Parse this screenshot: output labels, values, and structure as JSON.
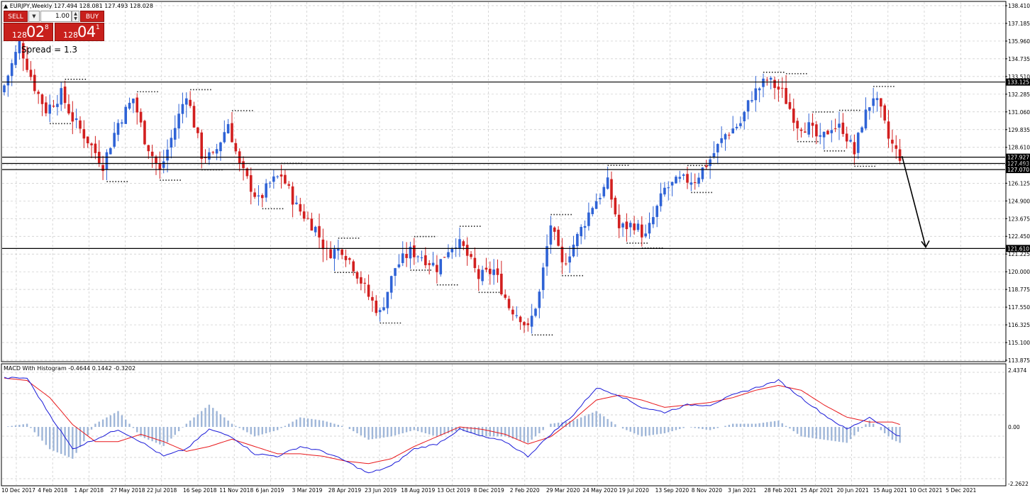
{
  "chart_header": {
    "symbol_info": "EURJPY,Weekly  127.494 128.081 127.493 128.028"
  },
  "trade_panel": {
    "sell_label": "SELL",
    "buy_label": "BUY",
    "lot": "1.00",
    "sell_price_small": "128",
    "sell_price_big": "02",
    "sell_price_sup": "8",
    "buy_price_small": "128",
    "buy_price_big": "04",
    "buy_price_sup": "1",
    "spread_text": "Spread = 1.3"
  },
  "indicator_header": {
    "label": "MACD With Histogram -0.4644 0.1442 -0.3202"
  },
  "colors": {
    "bull": "#2f63d6",
    "bear": "#d21f1f",
    "macd_line": "#1a1ad8",
    "signal_line": "#e8181b",
    "histogram": "#9fb6d8",
    "grid": "#c8c8c8"
  },
  "chart_data": [
    {
      "type": "candlestick",
      "symbol": "EURJPY",
      "timeframe": "Weekly",
      "ylim": [
        113.875,
        138.41
      ],
      "y_tick_labels": [
        "138.410",
        "137.185",
        "135.960",
        "134.735",
        "133.510",
        "132.285",
        "131.060",
        "129.835",
        "128.610",
        "127.385",
        "126.125",
        "124.900",
        "123.675",
        "122.450",
        "121.225",
        "120.000",
        "118.775",
        "117.550",
        "116.325",
        "115.100",
        "113.875"
      ],
      "x_tick_labels": [
        "10 Dec 2017",
        "4 Feb 2018",
        "1 Apr 2018",
        "27 May 2018",
        "22 Jul 2018",
        "16 Sep 2018",
        "11 Nov 2018",
        "6 Jan 2019",
        "3 Mar 2019",
        "28 Apr 2019",
        "23 Jun 2019",
        "18 Aug 2019",
        "13 Oct 2019",
        "8 Dec 2019",
        "2 Feb 2020",
        "29 Mar 2020",
        "24 May 2020",
        "19 Jul 2020",
        "13 Sep 2020",
        "8 Nov 2020",
        "3 Jan 2021",
        "28 Feb 2021",
        "25 Apr 2021",
        "20 Jun 2021",
        "15 Aug 2021",
        "10 Oct 2021",
        "5 Dec 2021"
      ],
      "close_path": [
        [
          0,
          132.9
        ],
        [
          4,
          135.8
        ],
        [
          8,
          132.8
        ],
        [
          11,
          131.2
        ],
        [
          15,
          132.3
        ],
        [
          18,
          130.6
        ],
        [
          22,
          129.1
        ],
        [
          26,
          127.4
        ],
        [
          30,
          130.3
        ],
        [
          34,
          132.0
        ],
        [
          37,
          129.2
        ],
        [
          41,
          126.9
        ],
        [
          45,
          130.0
        ],
        [
          48,
          132.4
        ],
        [
          52,
          128.1
        ],
        [
          55,
          127.9
        ],
        [
          59,
          130.3
        ],
        [
          62,
          127.3
        ],
        [
          67,
          124.9
        ],
        [
          70,
          126.1
        ],
        [
          73,
          126.7
        ],
        [
          77,
          124.5
        ],
        [
          82,
          123.0
        ],
        [
          85,
          121.3
        ],
        [
          89,
          121.6
        ],
        [
          92,
          120.4
        ],
        [
          96,
          118.3
        ],
        [
          99,
          117.1
        ],
        [
          103,
          120.3
        ],
        [
          107,
          121.4
        ],
        [
          110,
          121.1
        ],
        [
          114,
          120.3
        ],
        [
          117,
          121.6
        ],
        [
          119,
          122.1
        ],
        [
          121,
          121.6
        ],
        [
          125,
          119.6
        ],
        [
          129,
          120.1
        ],
        [
          133,
          117.6
        ],
        [
          136,
          116.9
        ],
        [
          138,
          116.0
        ],
        [
          141,
          118.5
        ],
        [
          144,
          123.3
        ],
        [
          147,
          120.4
        ],
        [
          151,
          122.4
        ],
        [
          155,
          124.6
        ],
        [
          159,
          126.1
        ],
        [
          162,
          123.0
        ],
        [
          166,
          123.3
        ],
        [
          169,
          122.4
        ],
        [
          174,
          125.7
        ],
        [
          178,
          126.3
        ],
        [
          182,
          126.4
        ],
        [
          186,
          127.8
        ],
        [
          190,
          129.5
        ],
        [
          194,
          130.3
        ],
        [
          197,
          132.2
        ],
        [
          201,
          133.3
        ],
        [
          205,
          132.4
        ],
        [
          209,
          130.2
        ],
        [
          212,
          130.0
        ],
        [
          215,
          129.0
        ],
        [
          218,
          130.1
        ],
        [
          221,
          129.9
        ],
        [
          224,
          128.2
        ],
        [
          226,
          130.3
        ],
        [
          229,
          132.2
        ],
        [
          231,
          131.0
        ],
        [
          233,
          129.2
        ],
        [
          235,
          128.3
        ],
        [
          236,
          128.0
        ]
      ],
      "horizontal_levels": [
        133.125,
        127.927,
        127.493,
        127.07,
        121.61
      ],
      "projection_arrow": {
        "from_price": 128.0,
        "to_price": 121.61
      }
    },
    {
      "type": "line",
      "name": "MACD With Histogram",
      "ylim": [
        -2.2622,
        2.4374
      ],
      "y_tick_labels": [
        "2.4374",
        "0.00",
        "-2.2622"
      ],
      "series": [
        {
          "values_path": [
            [
              0,
              2.0
            ],
            [
              6,
              2.0
            ],
            [
              12,
              0.5
            ],
            [
              18,
              -0.9
            ],
            [
              24,
              -0.5
            ],
            [
              30,
              -0.1
            ],
            [
              36,
              -0.6
            ],
            [
              42,
              -1.2
            ],
            [
              48,
              -0.9
            ],
            [
              54,
              -0.1
            ],
            [
              60,
              -0.4
            ],
            [
              66,
              -1.1
            ],
            [
              72,
              -1.2
            ],
            [
              78,
              -0.8
            ],
            [
              84,
              -1.0
            ],
            [
              90,
              -1.4
            ],
            [
              96,
              -1.9
            ],
            [
              102,
              -1.6
            ],
            [
              108,
              -0.9
            ],
            [
              114,
              -0.7
            ],
            [
              120,
              -0.1
            ],
            [
              126,
              -0.4
            ],
            [
              132,
              -0.6
            ],
            [
              138,
              -1.2
            ],
            [
              144,
              -0.3
            ],
            [
              150,
              0.5
            ],
            [
              156,
              1.6
            ],
            [
              162,
              1.3
            ],
            [
              168,
              0.8
            ],
            [
              174,
              0.6
            ],
            [
              180,
              0.9
            ],
            [
              186,
              0.9
            ],
            [
              192,
              1.3
            ],
            [
              198,
              1.6
            ],
            [
              204,
              1.9
            ],
            [
              210,
              1.2
            ],
            [
              216,
              0.5
            ],
            [
              222,
              -0.1
            ],
            [
              228,
              0.4
            ],
            [
              234,
              -0.2
            ],
            [
              236,
              -0.4
            ]
          ]
        },
        {
          "values_path": [
            [
              0,
              2.0
            ],
            [
              6,
              1.9
            ],
            [
              12,
              1.2
            ],
            [
              18,
              0.1
            ],
            [
              24,
              -0.6
            ],
            [
              30,
              -0.6
            ],
            [
              36,
              -0.3
            ],
            [
              42,
              -0.6
            ],
            [
              48,
              -1.0
            ],
            [
              54,
              -0.8
            ],
            [
              60,
              -0.5
            ],
            [
              66,
              -0.8
            ],
            [
              72,
              -1.1
            ],
            [
              78,
              -1.1
            ],
            [
              84,
              -1.2
            ],
            [
              90,
              -1.4
            ],
            [
              96,
              -1.5
            ],
            [
              102,
              -1.3
            ],
            [
              108,
              -0.8
            ],
            [
              114,
              -0.4
            ],
            [
              120,
              0.0
            ],
            [
              126,
              -0.1
            ],
            [
              132,
              -0.3
            ],
            [
              138,
              -0.7
            ],
            [
              144,
              -0.4
            ],
            [
              150,
              0.3
            ],
            [
              156,
              1.1
            ],
            [
              162,
              1.3
            ],
            [
              168,
              1.1
            ],
            [
              174,
              0.8
            ],
            [
              180,
              0.9
            ],
            [
              186,
              1.0
            ],
            [
              192,
              1.2
            ],
            [
              198,
              1.5
            ],
            [
              204,
              1.7
            ],
            [
              210,
              1.5
            ],
            [
              216,
              0.9
            ],
            [
              222,
              0.4
            ],
            [
              228,
              0.2
            ],
            [
              234,
              0.2
            ],
            [
              236,
              0.1
            ]
          ]
        }
      ]
    }
  ]
}
